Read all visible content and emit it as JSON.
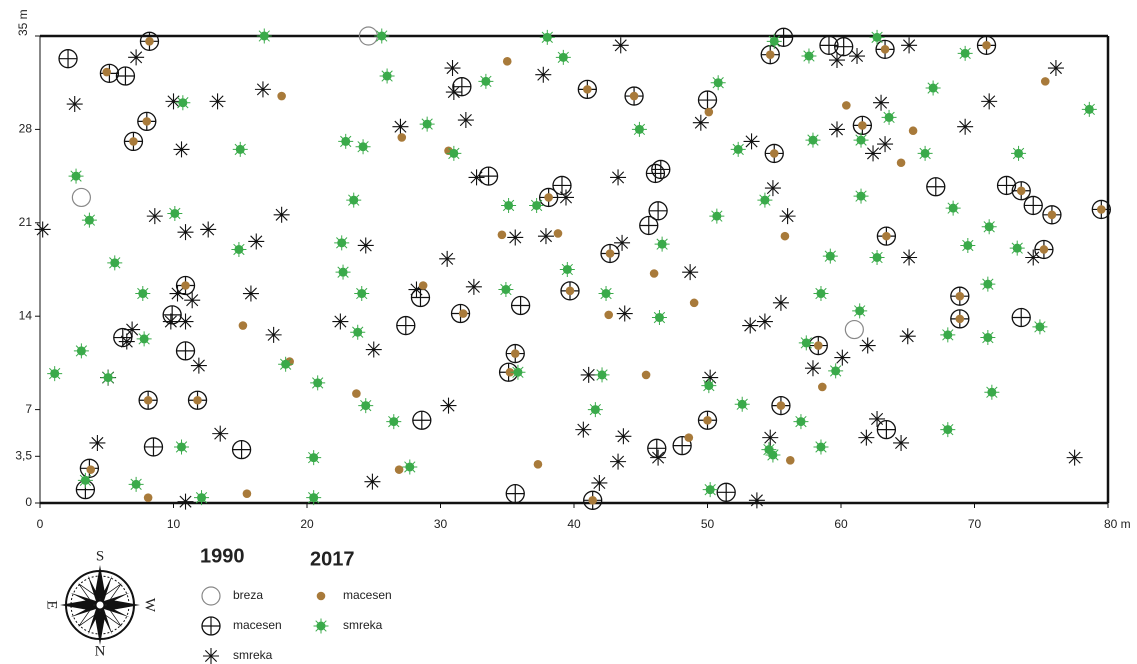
{
  "chart_data": {
    "type": "scatter",
    "xlim": [
      0,
      80
    ],
    "ylim": [
      0,
      35
    ],
    "xticks": [
      0,
      10,
      20,
      30,
      40,
      50,
      60,
      70,
      {
        "value": 80,
        "label": "80 m"
      }
    ],
    "yticks": [
      0,
      {
        "value": 3.5,
        "label": "3,5"
      },
      7,
      14,
      21,
      28,
      {
        "value": 35,
        "label": "35 m"
      }
    ],
    "compass": [
      "S",
      "W",
      "N",
      "E"
    ],
    "series": [
      {
        "name": "breza",
        "group": "1990",
        "marker": "open-circle",
        "color": "#888888",
        "x": [
          24.6,
          3.1,
          61.0
        ],
        "y": [
          35.0,
          22.9,
          13.0
        ]
      },
      {
        "name": "macesen",
        "group": "1990",
        "marker": "crossed-circle",
        "color": "#111111",
        "x": [
          2.1,
          5.2,
          6.4,
          8.2,
          3.4,
          3.7,
          8.5,
          15.1,
          9.9,
          10.9,
          6.2,
          28.6,
          27.4,
          28.5,
          31.6,
          31.5,
          33.6,
          36.0,
          35.1,
          35.6,
          39.1,
          41.4,
          45.6,
          46.3,
          46.1,
          46.5,
          48.1,
          46.2,
          51.4,
          50.0,
          50.0,
          55.7,
          59.1,
          60.2,
          67.1,
          72.4,
          74.4,
          73.5,
          63.4,
          8.0,
          7.0,
          10.9,
          8.1,
          11.8,
          35.6,
          38.1,
          39.7,
          41.0,
          44.5,
          42.7,
          54.7,
          55.0,
          61.6,
          63.3,
          63.4,
          68.9,
          68.9,
          70.9,
          73.5,
          75.8,
          75.2,
          79.5,
          58.3,
          55.5
        ],
        "y": [
          33.3,
          32.2,
          32.0,
          34.6,
          1.0,
          2.6,
          4.2,
          4.0,
          14.1,
          11.4,
          12.4,
          6.2,
          13.3,
          15.4,
          31.2,
          14.2,
          24.5,
          14.8,
          9.8,
          0.7,
          23.8,
          0.2,
          20.8,
          21.9,
          24.7,
          25.0,
          4.3,
          4.1,
          0.8,
          30.2,
          6.2,
          34.9,
          34.3,
          34.2,
          23.7,
          23.8,
          22.3,
          13.9,
          5.5,
          28.6,
          27.1,
          16.3,
          7.7,
          7.7,
          11.2,
          22.9,
          15.9,
          31.0,
          30.5,
          18.7,
          33.6,
          26.2,
          28.3,
          34.0,
          20.0,
          15.5,
          13.8,
          34.3,
          23.4,
          21.6,
          19.0,
          22.0,
          11.8,
          7.3
        ]
      },
      {
        "name": "smreka",
        "group": "1990",
        "marker": "asterisk",
        "color": "#111111",
        "x": [
          0.2,
          2.6,
          4.3,
          5.1,
          7.2,
          6.9,
          6.5,
          8.6,
          10.0,
          10.6,
          10.9,
          10.3,
          11.4,
          10.9,
          9.8,
          11.9,
          10.9,
          12.6,
          13.3,
          13.5,
          16.2,
          15.8,
          16.7,
          17.5,
          18.1,
          22.5,
          24.4,
          25.0,
          24.9,
          27.0,
          28.2,
          30.5,
          30.6,
          30.9,
          31.0,
          31.9,
          32.7,
          32.5,
          35.6,
          37.7,
          37.9,
          39.4,
          40.7,
          41.1,
          41.9,
          43.3,
          43.5,
          43.6,
          43.8,
          43.7,
          43.3,
          46.3,
          48.7,
          49.5,
          50.2,
          53.2,
          53.7,
          53.3,
          54.3,
          54.9,
          54.7,
          55.5,
          56.0,
          57.9,
          59.7,
          60.1,
          59.7,
          61.2,
          62.0,
          61.9,
          62.7,
          63.0,
          62.4,
          63.3,
          65.1,
          65.0,
          64.5,
          65.1,
          69.3,
          71.1,
          74.4,
          76.1,
          77.5
        ],
        "y": [
          20.5,
          29.9,
          4.5,
          9.4,
          33.4,
          13.0,
          12.1,
          21.5,
          30.1,
          26.5,
          20.3,
          15.7,
          15.2,
          13.6,
          13.6,
          10.3,
          0.1,
          20.5,
          30.1,
          5.2,
          19.6,
          15.7,
          31.0,
          12.6,
          21.6,
          13.6,
          19.3,
          11.5,
          1.6,
          28.2,
          16.0,
          18.3,
          7.3,
          32.6,
          30.8,
          28.7,
          24.4,
          16.2,
          19.9,
          32.1,
          20.0,
          22.9,
          5.5,
          9.6,
          1.5,
          24.4,
          34.3,
          19.5,
          14.2,
          5.0,
          3.1,
          3.4,
          17.3,
          28.5,
          9.4,
          13.3,
          0.2,
          27.1,
          13.6,
          23.6,
          4.9,
          15.0,
          21.5,
          10.1,
          28.0,
          10.9,
          33.2,
          33.5,
          11.8,
          4.9,
          6.3,
          30.0,
          26.2,
          26.9,
          34.3,
          12.5,
          4.5,
          18.4,
          28.2,
          30.1,
          18.4,
          32.6,
          3.4
        ]
      },
      {
        "name": "macesen",
        "group": "2017",
        "marker": "dot",
        "color": "#a87a3a",
        "x": [
          5.0,
          8.2,
          8.0,
          7.0,
          18.1,
          10.9,
          15.2,
          18.7,
          8.1,
          11.8,
          3.8,
          8.1,
          15.5,
          27.1,
          30.6,
          35.0,
          34.6,
          28.7,
          31.7,
          35.6,
          35.2,
          23.7,
          26.9,
          37.3,
          38.1,
          38.8,
          39.7,
          41.0,
          44.5,
          42.7,
          42.6,
          45.4,
          46.0,
          49.0,
          48.6,
          41.4,
          50.1,
          54.7,
          55.0,
          55.5,
          56.2,
          55.8,
          58.3,
          58.6,
          60.4,
          61.6,
          63.3,
          63.4,
          64.5,
          65.4,
          68.9,
          68.9,
          70.9,
          73.5,
          75.8,
          75.2,
          75.3,
          79.5,
          50.0
        ],
        "y": [
          32.3,
          34.6,
          28.6,
          27.1,
          30.5,
          16.3,
          13.3,
          10.6,
          7.7,
          7.7,
          2.5,
          0.4,
          0.7,
          27.4,
          26.4,
          33.1,
          20.1,
          16.3,
          14.2,
          11.2,
          9.8,
          8.2,
          2.5,
          2.9,
          22.9,
          20.2,
          15.9,
          31.0,
          30.5,
          18.7,
          14.1,
          9.6,
          17.2,
          15.0,
          4.9,
          0.2,
          29.3,
          33.6,
          26.2,
          7.3,
          3.2,
          20.0,
          11.8,
          8.7,
          29.8,
          28.3,
          34.0,
          20.0,
          25.5,
          27.9,
          15.5,
          13.8,
          34.3,
          23.4,
          21.6,
          19.0,
          31.6,
          22.0,
          6.2
        ]
      },
      {
        "name": "smreka",
        "group": "2017",
        "marker": "star-dot",
        "color": "#3aaa4a",
        "x": [
          16.8,
          25.6,
          38.0,
          55.0,
          62.7,
          39.2,
          26.0,
          33.4,
          50.8,
          57.6,
          69.3,
          66.9,
          78.6,
          10.7,
          15.0,
          22.9,
          24.2,
          31.0,
          29.0,
          44.9,
          52.3,
          57.9,
          63.6,
          61.5,
          66.3,
          73.3,
          2.7,
          3.7,
          10.1,
          23.5,
          35.1,
          37.2,
          50.7,
          54.3,
          61.5,
          68.4,
          71.1,
          5.6,
          14.9,
          22.6,
          22.7,
          39.5,
          46.6,
          59.2,
          62.7,
          69.5,
          73.2,
          71.0,
          7.7,
          24.1,
          34.9,
          42.4,
          46.4,
          58.5,
          61.4,
          23.8,
          7.8,
          3.1,
          1.1,
          5.1,
          18.4,
          20.8,
          24.4,
          35.8,
          42.1,
          50.1,
          52.6,
          57.4,
          59.6,
          68.0,
          71.0,
          74.9,
          71.3,
          41.6,
          26.5,
          57.0,
          68.0,
          10.6,
          20.5,
          27.7,
          3.4,
          7.2,
          12.1,
          20.5,
          50.2,
          54.6,
          54.9,
          58.5
        ],
        "y": [
          35.0,
          35.0,
          34.9,
          34.6,
          34.9,
          33.4,
          32.0,
          31.6,
          31.5,
          33.5,
          33.7,
          31.1,
          29.5,
          30.0,
          26.5,
          27.1,
          26.7,
          26.2,
          28.4,
          28.0,
          26.5,
          27.2,
          28.9,
          27.2,
          26.2,
          26.2,
          24.5,
          21.2,
          21.7,
          22.7,
          22.3,
          22.3,
          21.5,
          22.7,
          23.0,
          22.1,
          20.7,
          18.0,
          19.0,
          19.5,
          17.3,
          17.5,
          19.4,
          18.5,
          18.4,
          19.3,
          19.1,
          16.4,
          15.7,
          15.7,
          16.0,
          15.7,
          13.9,
          15.7,
          14.4,
          12.8,
          12.3,
          11.4,
          9.7,
          9.4,
          10.4,
          9.0,
          7.3,
          9.8,
          9.6,
          8.8,
          7.4,
          12.0,
          9.9,
          12.6,
          12.4,
          13.2,
          8.3,
          7.0,
          6.1,
          6.1,
          5.5,
          4.2,
          3.4,
          2.7,
          1.7,
          1.4,
          0.4,
          0.4,
          1.0,
          4.0,
          3.6,
          4.2
        ]
      }
    ]
  }
}
